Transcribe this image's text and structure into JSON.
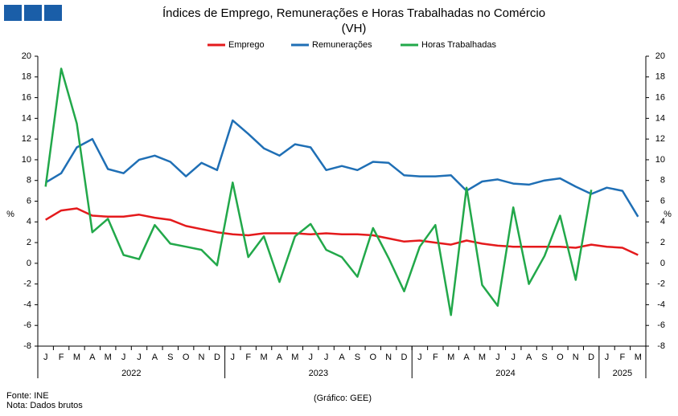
{
  "chart_data": {
    "type": "line",
    "title": "Índices de Emprego, Remunerações e Horas Trabalhadas no Comércio",
    "subtitle": "(VH)",
    "ylabel": "%",
    "y2label": "%",
    "categories": [
      "J",
      "F",
      "M",
      "A",
      "M",
      "J",
      "J",
      "A",
      "S",
      "O",
      "N",
      "D",
      "J",
      "F",
      "M",
      "A",
      "M",
      "J",
      "J",
      "A",
      "S",
      "O",
      "N",
      "D",
      "J",
      "F",
      "M",
      "A",
      "M",
      "J",
      "J",
      "A",
      "S",
      "O",
      "N",
      "D",
      "J",
      "F",
      "M"
    ],
    "year_labels": [
      "2022",
      "2023",
      "2024",
      "2025"
    ],
    "series": [
      {
        "name": "Emprego",
        "color": "#e41a1c",
        "values": [
          4.2,
          5.1,
          5.3,
          4.6,
          4.5,
          4.5,
          4.7,
          4.4,
          4.2,
          3.6,
          3.3,
          3.0,
          2.8,
          2.7,
          2.9,
          2.9,
          2.9,
          2.8,
          2.9,
          2.8,
          2.8,
          2.7,
          2.4,
          2.1,
          2.2,
          2.0,
          1.8,
          2.2,
          1.9,
          1.7,
          1.6,
          1.6,
          1.6,
          1.6,
          1.5,
          1.8,
          1.6,
          1.5,
          0.8
        ]
      },
      {
        "name": "Remunerações",
        "color": "#1f6fb5",
        "values": [
          7.8,
          8.7,
          11.2,
          12.0,
          9.1,
          8.7,
          10.0,
          10.4,
          9.8,
          8.4,
          9.7,
          9.0,
          13.8,
          12.5,
          11.1,
          10.4,
          11.5,
          11.2,
          9.0,
          9.4,
          9.0,
          9.8,
          9.7,
          8.5,
          8.4,
          8.4,
          8.5,
          7.0,
          7.9,
          8.1,
          7.7,
          7.6,
          8.0,
          8.2,
          7.4,
          6.7,
          7.3,
          7.0,
          4.5
        ]
      },
      {
        "name": "Horas Trabalhadas",
        "color": "#22a84a",
        "values": [
          7.4,
          18.8,
          13.5,
          3.0,
          4.3,
          0.8,
          0.4,
          3.7,
          1.9,
          1.6,
          1.3,
          -0.2,
          7.8,
          0.6,
          2.6,
          -1.8,
          2.6,
          3.8,
          1.3,
          0.6,
          -1.3,
          3.4,
          0.5,
          -2.7,
          1.6,
          3.7,
          -5.0,
          7.3,
          -2.1,
          -4.1,
          5.4,
          -2.0,
          0.7,
          4.6,
          -1.6,
          7.1,
          null,
          null,
          null
        ]
      }
    ],
    "ylim": [
      -8,
      20
    ],
    "yticks": [
      -8,
      -6,
      -4,
      -2,
      0,
      2,
      4,
      6,
      8,
      10,
      12,
      14,
      16,
      18,
      20
    ],
    "y2lim": [
      -8,
      20
    ],
    "y2ticks": [
      -8,
      -6,
      -4,
      -2,
      0,
      2,
      4,
      6,
      8,
      10,
      12,
      14,
      16,
      18,
      20
    ],
    "grid": false,
    "legend": "top",
    "source": "Fonte: INE",
    "note": "Nota: Dados brutos",
    "credit": "(Gráfico: GEE)"
  }
}
